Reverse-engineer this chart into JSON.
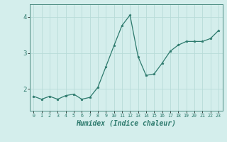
{
  "x": [
    0,
    1,
    2,
    3,
    4,
    5,
    6,
    7,
    8,
    9,
    10,
    11,
    12,
    13,
    14,
    15,
    16,
    17,
    18,
    19,
    20,
    21,
    22,
    23
  ],
  "y": [
    1.8,
    1.72,
    1.8,
    1.72,
    1.82,
    1.86,
    1.72,
    1.77,
    2.05,
    2.62,
    3.2,
    3.76,
    4.05,
    2.9,
    2.38,
    2.42,
    2.72,
    3.05,
    3.22,
    3.32,
    3.32,
    3.32,
    3.4,
    3.62
  ],
  "line_color": "#2d7a6d",
  "marker": "*",
  "marker_size": 2.5,
  "linewidth": 0.9,
  "xlabel": "Humidex (Indice chaleur)",
  "xlabel_fontsize": 7,
  "bg_color": "#d4eeec",
  "grid_color": "#b8dbd8",
  "tick_color": "#2d7a6d",
  "spine_color": "#4a8a80",
  "ylim": [
    1.4,
    4.35
  ],
  "xlim": [
    -0.5,
    23.5
  ],
  "yticks": [
    2,
    3,
    4
  ],
  "ytick_labels": [
    "2",
    "3",
    "4"
  ],
  "xtick_labels": [
    "0",
    "1",
    "2",
    "3",
    "4",
    "5",
    "6",
    "7",
    "8",
    "9",
    "10",
    "11",
    "12",
    "13",
    "14",
    "15",
    "16",
    "17",
    "18",
    "19",
    "20",
    "21",
    "22",
    "23"
  ]
}
